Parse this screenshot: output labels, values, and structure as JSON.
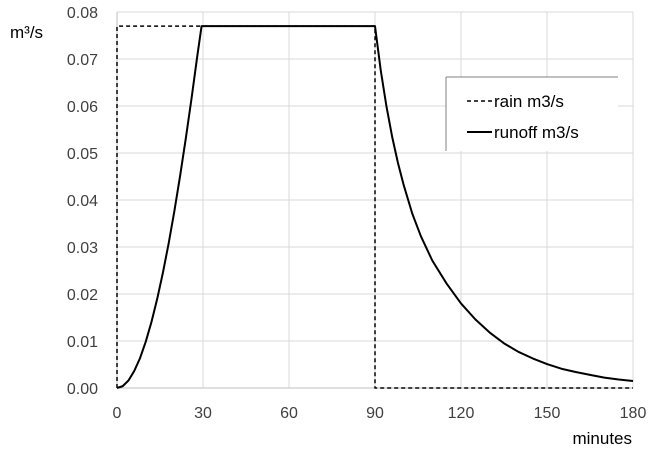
{
  "chart_data": {
    "type": "line",
    "xlabel": "minutes",
    "ylabel": "m³/s",
    "xlim": [
      0,
      180
    ],
    "ylim": [
      0,
      0.08
    ],
    "xticks": [
      0,
      30,
      60,
      90,
      120,
      150,
      180
    ],
    "yticks": [
      0.0,
      0.01,
      0.02,
      0.03,
      0.04,
      0.05,
      0.06,
      0.07,
      0.08
    ],
    "xtick_labels": [
      "0",
      "30",
      "60",
      "90",
      "120",
      "150",
      "180"
    ],
    "ytick_labels": [
      "0.00",
      "0.01",
      "0.02",
      "0.03",
      "0.04",
      "0.05",
      "0.06",
      "0.07",
      "0.08"
    ],
    "grid": true,
    "legend_position": "right",
    "series": [
      {
        "name": "rain m3/s",
        "style": "dashed",
        "color": "#000000",
        "x": [
          0,
          0,
          90,
          90,
          180
        ],
        "y": [
          0,
          0.077,
          0.077,
          0,
          0
        ]
      },
      {
        "name": "runoff m3/s",
        "style": "solid",
        "color": "#000000",
        "x": [
          0,
          2,
          4,
          6,
          8,
          10,
          12,
          14,
          16,
          18,
          20,
          22,
          24,
          26,
          28,
          29.5,
          35,
          45,
          60,
          75,
          90,
          92,
          94,
          96,
          98,
          100,
          103,
          106,
          110,
          115,
          120,
          125,
          130,
          135,
          140,
          145,
          150,
          155,
          160,
          165,
          170,
          175,
          180
        ],
        "y": [
          0,
          0.0004,
          0.0016,
          0.0036,
          0.0063,
          0.0098,
          0.014,
          0.0189,
          0.0245,
          0.0307,
          0.0376,
          0.0451,
          0.0531,
          0.0616,
          0.0706,
          0.077,
          0.077,
          0.077,
          0.077,
          0.077,
          0.077,
          0.0676,
          0.0599,
          0.0534,
          0.0479,
          0.0432,
          0.0371,
          0.0323,
          0.0271,
          0.0222,
          0.018,
          0.0146,
          0.0118,
          0.0095,
          0.0077,
          0.0063,
          0.0051,
          0.0041,
          0.0034,
          0.0028,
          0.0022,
          0.0018,
          0.0015
        ]
      }
    ]
  }
}
